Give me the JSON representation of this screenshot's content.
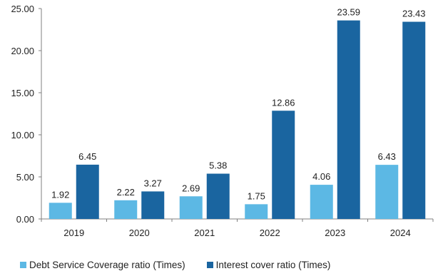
{
  "chart_data": {
    "type": "bar",
    "categories": [
      "2019",
      "2020",
      "2021",
      "2022",
      "2023",
      "2024"
    ],
    "series": [
      {
        "name": "Debt Service Coverage ratio (Times)",
        "values": [
          1.92,
          2.22,
          2.69,
          1.75,
          4.06,
          6.43
        ],
        "color": "#5cb8e4"
      },
      {
        "name": "Interest cover ratio (Times)",
        "values": [
          6.45,
          3.27,
          5.38,
          12.86,
          23.59,
          23.43
        ],
        "color": "#1a65a0"
      }
    ],
    "data_labels": [
      [
        "1.92",
        "2.22",
        "2.69",
        "1.75",
        "4.06",
        "6.43"
      ],
      [
        "6.45",
        "3.27",
        "5.38",
        "12.86",
        "23.59",
        "23.43"
      ]
    ],
    "y_ticks": [
      "0.00",
      "5.00",
      "10.00",
      "15.00",
      "20.00",
      "25.00"
    ],
    "ylim": [
      0,
      25
    ],
    "grid": false,
    "legend_position": "bottom",
    "title": "",
    "xlabel": "",
    "ylabel": ""
  }
}
